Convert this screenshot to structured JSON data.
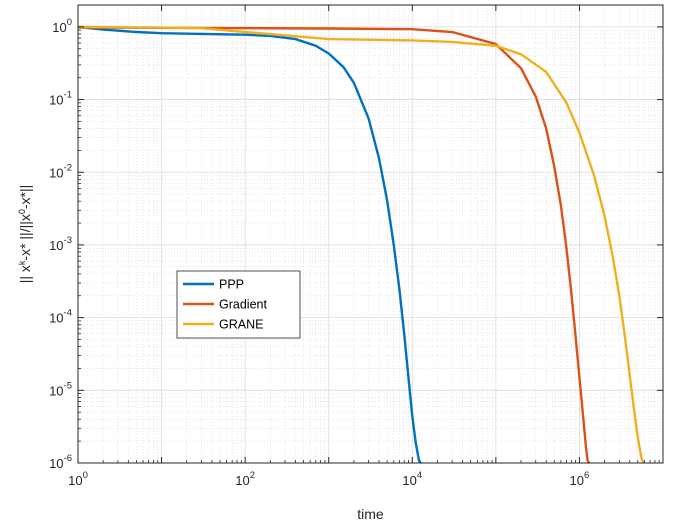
{
  "chart_data": {
    "type": "line",
    "xscale": "log",
    "yscale": "log",
    "xlim": [
      1,
      10000000
    ],
    "ylim": [
      1e-06,
      2
    ],
    "grid": true,
    "minor_grid": true,
    "xlabel": "time",
    "ylabel_parts": [
      "|| x",
      "k",
      "-x* ||/||x",
      "0",
      "-x*||"
    ],
    "xticks": [
      {
        "value": 1,
        "base": "10",
        "exp": "0"
      },
      {
        "value": 100,
        "base": "10",
        "exp": "2"
      },
      {
        "value": 10000,
        "base": "10",
        "exp": "4"
      },
      {
        "value": 1000000,
        "base": "10",
        "exp": "6"
      }
    ],
    "yticks": [
      {
        "value": 1,
        "base": "10",
        "exp": "0"
      },
      {
        "value": 0.1,
        "base": "10",
        "exp": "-1"
      },
      {
        "value": 0.01,
        "base": "10",
        "exp": "-2"
      },
      {
        "value": 0.001,
        "base": "10",
        "exp": "-3"
      },
      {
        "value": 0.0001,
        "base": "10",
        "exp": "-4"
      },
      {
        "value": 1e-05,
        "base": "10",
        "exp": "-5"
      },
      {
        "value": 1e-06,
        "base": "10",
        "exp": "-6"
      }
    ],
    "legend_position": "center-left",
    "series": [
      {
        "name": "PPP",
        "color": "#0072BD",
        "x": [
          1,
          2,
          5,
          10,
          30,
          100,
          200,
          400,
          700,
          1000,
          1500,
          2000,
          3000,
          4000,
          5000,
          6000,
          7000,
          8000,
          9000,
          10000,
          11000,
          12000,
          12500,
          12700
        ],
        "y": [
          1.0,
          0.92,
          0.85,
          0.82,
          0.8,
          0.78,
          0.75,
          0.68,
          0.55,
          0.43,
          0.28,
          0.17,
          0.055,
          0.0155,
          0.0041,
          0.001,
          0.00025,
          6e-05,
          1.5e-05,
          4.4e-06,
          1.9e-06,
          1.1e-06,
          1.01e-06,
          1e-06
        ]
      },
      {
        "name": "Gradient",
        "color": "#D95319",
        "x": [
          1,
          10,
          100,
          1000,
          10000,
          30000,
          100000,
          200000,
          300000,
          400000,
          500000,
          600000,
          700000,
          800000,
          900000,
          1000000,
          1100000,
          1200000,
          1250000,
          1300000
        ],
        "y": [
          0.98,
          0.97,
          0.96,
          0.95,
          0.93,
          0.85,
          0.58,
          0.27,
          0.11,
          0.04,
          0.012,
          0.0035,
          0.0009,
          0.00022,
          5.5e-05,
          1.5e-05,
          4.7e-06,
          1.6e-06,
          1.1e-06,
          1e-06
        ]
      },
      {
        "name": "GRANE",
        "color": "#EDB120",
        "x": [
          1,
          3,
          10,
          30,
          100,
          1000,
          10000,
          30000,
          100000,
          200000,
          400000,
          700000,
          1000000,
          1500000,
          2000000,
          2500000,
          3000000,
          3500000,
          4000000,
          4500000,
          5000000,
          5500000,
          5800000
        ],
        "y": [
          1.0,
          0.99,
          0.98,
          0.96,
          0.85,
          0.68,
          0.65,
          0.62,
          0.55,
          0.42,
          0.24,
          0.09,
          0.035,
          0.009,
          0.0025,
          0.0007,
          0.0002,
          5.5e-05,
          1.6e-05,
          5.5e-06,
          2.2e-06,
          1.2e-06,
          1e-06
        ]
      }
    ]
  }
}
